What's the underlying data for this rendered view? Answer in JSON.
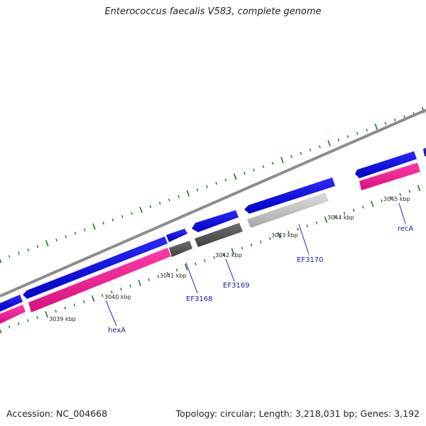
{
  "header": {
    "title": "Enterococcus faecalis V583, complete genome"
  },
  "footer": {
    "accession": "Accession: NC_004668",
    "summary": "Topology: circular; Length: 3,218,031 bp; Genes: 3,192"
  },
  "ticks": [
    {
      "label": "3039 kbp"
    },
    {
      "label": "3040 kbp"
    },
    {
      "label": "3041 kbp"
    },
    {
      "label": "3042 kbp"
    },
    {
      "label": "3043 kbp"
    },
    {
      "label": "3044 kbp"
    },
    {
      "label": "3045 kbp"
    }
  ],
  "gene_labels": [
    {
      "name": "hexA"
    },
    {
      "name": "EF3168"
    },
    {
      "name": "EF3169"
    },
    {
      "name": "EF3170"
    },
    {
      "name": "recA"
    }
  ],
  "colors": {
    "backbone": "#8c8c8c",
    "cds": "#0000ee",
    "cog_pink": "#ee1493",
    "cog_dark": "#555555",
    "cog_light": "#bdbdbd",
    "tick": "#1f7a1f",
    "gene_label": "#1a1aaa"
  }
}
